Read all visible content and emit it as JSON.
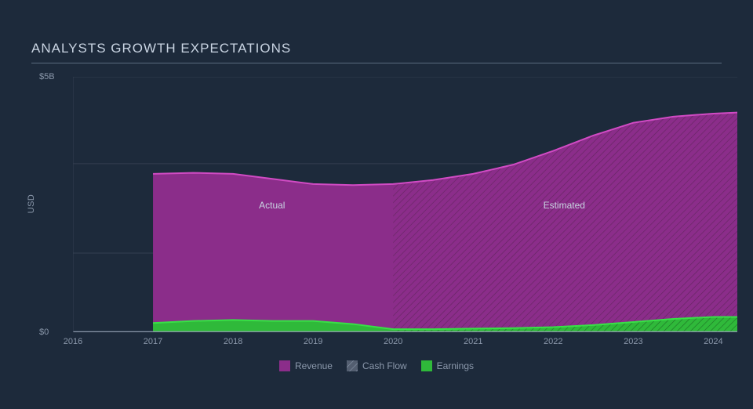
{
  "chart": {
    "type": "area",
    "title": "ANALYSTS GROWTH EXPECTATIONS",
    "background_color": "#1d2a3b",
    "title_color": "#c9d4e2",
    "title_fontsize": 17,
    "title_rule_color": "#5a6b80",
    "axis_color": "#8b98ab",
    "grid_color": "#343f50",
    "tick_fontsize": 11,
    "ylabel": "USD",
    "region_actual_label": "Actual",
    "region_estimated_label": "Estimated",
    "region_label_color": "#c9d4e2",
    "x": {
      "min": 2016,
      "max": 2024.3,
      "ticks": [
        2016,
        2017,
        2018,
        2019,
        2020,
        2021,
        2022,
        2023,
        2024
      ]
    },
    "y": {
      "min": 0,
      "max": 5,
      "ticks": [
        {
          "v": 0,
          "label": "$0"
        },
        {
          "v": 5,
          "label": "$5B"
        }
      ],
      "hgrid": [
        1.55,
        3.3,
        5
      ]
    },
    "split_year": 2020,
    "series": {
      "revenue": {
        "label": "Revenue",
        "fill": "#8b2d8a",
        "stroke": "#d14bc4",
        "hatch_stroke": "#62265f",
        "points": [
          {
            "x": 2017,
            "y": 3.1
          },
          {
            "x": 2017.5,
            "y": 3.12
          },
          {
            "x": 2018,
            "y": 3.1
          },
          {
            "x": 2018.5,
            "y": 3.0
          },
          {
            "x": 2019,
            "y": 2.9
          },
          {
            "x": 2019.5,
            "y": 2.88
          },
          {
            "x": 2020,
            "y": 2.9
          },
          {
            "x": 2020.5,
            "y": 2.98
          },
          {
            "x": 2021,
            "y": 3.1
          },
          {
            "x": 2021.5,
            "y": 3.28
          },
          {
            "x": 2022,
            "y": 3.55
          },
          {
            "x": 2022.5,
            "y": 3.85
          },
          {
            "x": 2023,
            "y": 4.1
          },
          {
            "x": 2023.5,
            "y": 4.22
          },
          {
            "x": 2024,
            "y": 4.28
          },
          {
            "x": 2024.3,
            "y": 4.3
          }
        ]
      },
      "cashflow": {
        "label": "Cash Flow",
        "swatch_fill": "#535e70",
        "swatch_hatch": "#8b98ab"
      },
      "earnings": {
        "label": "Earnings",
        "fill": "#2fb93a",
        "stroke": "#38e046",
        "hatch_stroke": "#1e6f25",
        "points": [
          {
            "x": 2017,
            "y": 0.18
          },
          {
            "x": 2017.5,
            "y": 0.22
          },
          {
            "x": 2018,
            "y": 0.24
          },
          {
            "x": 2018.5,
            "y": 0.22
          },
          {
            "x": 2019,
            "y": 0.22
          },
          {
            "x": 2019.5,
            "y": 0.16
          },
          {
            "x": 2020,
            "y": 0.06
          },
          {
            "x": 2020.5,
            "y": 0.06
          },
          {
            "x": 2021,
            "y": 0.07
          },
          {
            "x": 2021.5,
            "y": 0.08
          },
          {
            "x": 2022,
            "y": 0.1
          },
          {
            "x": 2022.5,
            "y": 0.14
          },
          {
            "x": 2023,
            "y": 0.2
          },
          {
            "x": 2023.5,
            "y": 0.26
          },
          {
            "x": 2024,
            "y": 0.3
          },
          {
            "x": 2024.3,
            "y": 0.3
          }
        ]
      }
    }
  }
}
